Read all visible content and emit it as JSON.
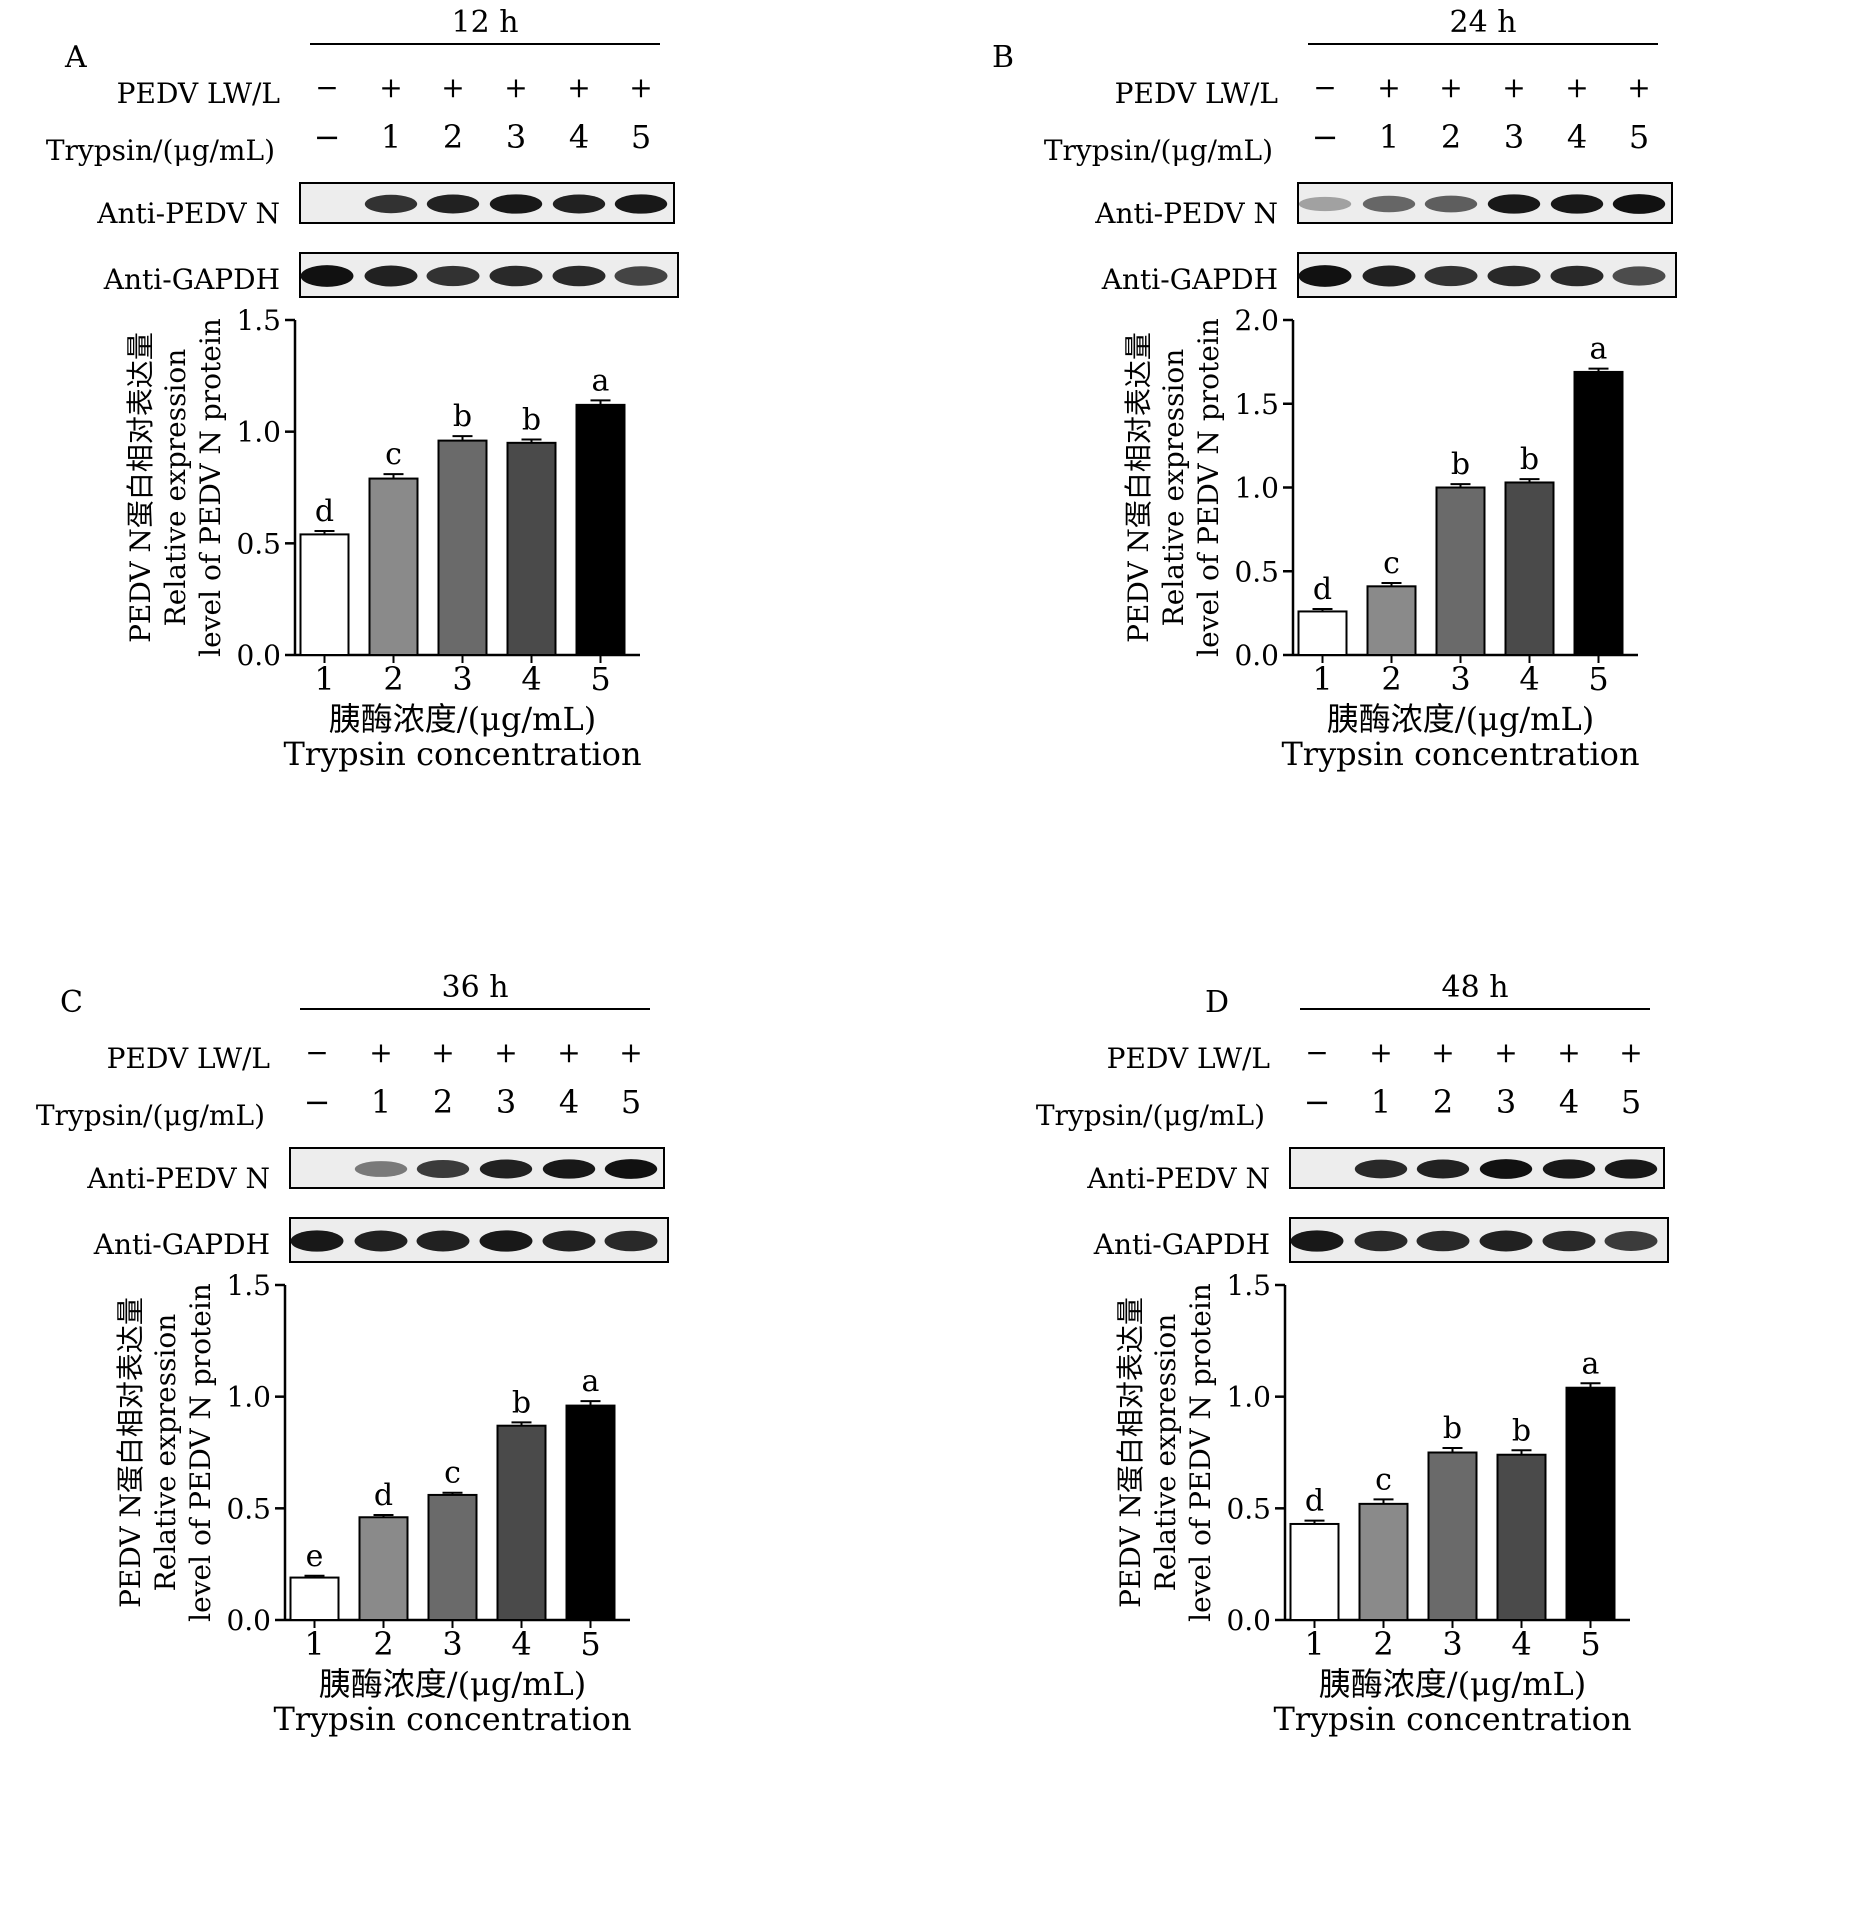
{
  "blot_row_labels": {
    "virus": "PEDV LW/L",
    "trypsin": "Trypsin/(μg/mL)",
    "target": "Anti-PEDV N",
    "control": "Anti-GAPDH"
  },
  "virus_signs": [
    "−",
    "+",
    "+",
    "+",
    "+",
    "+"
  ],
  "trypsin_doses": [
    "−",
    "1",
    "2",
    "3",
    "4",
    "5"
  ],
  "axis_text": {
    "y_cn": "PEDV N蛋白相对表达量",
    "y_en_1": "Relative expression",
    "y_en_2": "level of PEDV N protein",
    "x_cn": "胰酶浓度/(μg/mL)",
    "x_en": "Trypsin concentration"
  },
  "bar_colors": [
    "#ffffff",
    "#8a8a8a",
    "#6a6a6a",
    "#4a4a4a",
    "#000000"
  ],
  "chart_data": [
    {
      "panel": "A",
      "timepoint": "12 h",
      "type": "bar",
      "categories": [
        "1",
        "2",
        "3",
        "4",
        "5"
      ],
      "values": [
        0.54,
        0.79,
        0.96,
        0.95,
        1.12
      ],
      "errors": [
        0.015,
        0.02,
        0.02,
        0.015,
        0.02
      ],
      "letters": [
        "d",
        "c",
        "b",
        "b",
        "a"
      ],
      "ylim": [
        0,
        1.5
      ],
      "yticks": [
        "0.0",
        "0.5",
        "1.0",
        "1.5"
      ],
      "target_bands": [
        0,
        0.75,
        0.85,
        0.9,
        0.85,
        0.9
      ],
      "control_bands": [
        0.95,
        0.85,
        0.75,
        0.8,
        0.8,
        0.65
      ]
    },
    {
      "panel": "B",
      "timepoint": "24 h",
      "type": "bar",
      "categories": [
        "1",
        "2",
        "3",
        "4",
        "5"
      ],
      "values": [
        0.26,
        0.41,
        1.0,
        1.03,
        1.69
      ],
      "errors": [
        0.015,
        0.02,
        0.02,
        0.02,
        0.02
      ],
      "letters": [
        "d",
        "c",
        "b",
        "b",
        "a"
      ],
      "ylim": [
        0,
        2.0
      ],
      "yticks": [
        "0.0",
        "0.5",
        "1.0",
        "1.5",
        "2.0"
      ],
      "target_bands": [
        0.12,
        0.45,
        0.5,
        0.9,
        0.9,
        0.95
      ],
      "control_bands": [
        0.95,
        0.85,
        0.75,
        0.8,
        0.8,
        0.6
      ]
    },
    {
      "panel": "C",
      "timepoint": "36 h",
      "type": "bar",
      "categories": [
        "1",
        "2",
        "3",
        "4",
        "5"
      ],
      "values": [
        0.19,
        0.46,
        0.56,
        0.87,
        0.96
      ],
      "errors": [
        0.008,
        0.01,
        0.01,
        0.015,
        0.02
      ],
      "letters": [
        "e",
        "d",
        "c",
        "b",
        "a"
      ],
      "ylim": [
        0,
        1.5
      ],
      "yticks": [
        "0.0",
        "0.5",
        "1.0",
        "1.5"
      ],
      "target_bands": [
        0,
        0.35,
        0.7,
        0.85,
        0.9,
        0.95
      ],
      "control_bands": [
        0.9,
        0.85,
        0.85,
        0.9,
        0.85,
        0.8
      ]
    },
    {
      "panel": "D",
      "timepoint": "48 h",
      "type": "bar",
      "categories": [
        "1",
        "2",
        "3",
        "4",
        "5"
      ],
      "values": [
        0.43,
        0.52,
        0.75,
        0.74,
        1.04
      ],
      "errors": [
        0.015,
        0.02,
        0.02,
        0.02,
        0.02
      ],
      "letters": [
        "d",
        "c",
        "b",
        "b",
        "a"
      ],
      "ylim": [
        0,
        1.5
      ],
      "yticks": [
        "0.0",
        "0.5",
        "1.0",
        "1.5"
      ],
      "target_bands": [
        0,
        0.8,
        0.85,
        0.95,
        0.9,
        0.9
      ],
      "control_bands": [
        0.9,
        0.8,
        0.8,
        0.85,
        0.8,
        0.7
      ]
    }
  ]
}
